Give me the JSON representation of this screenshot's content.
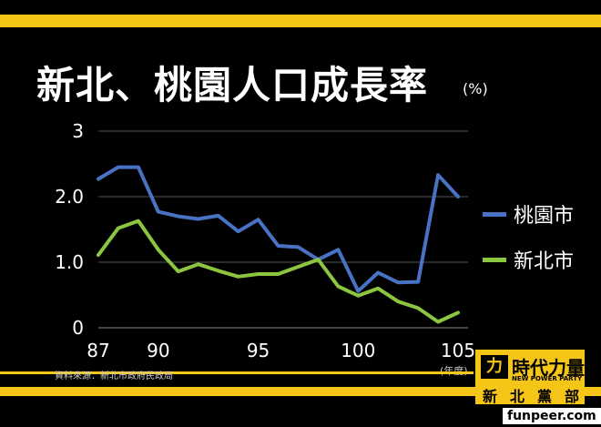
{
  "title": "新北、桃園人口成長率",
  "unit": "(%)",
  "source": "資料來源：新北市政府民政局",
  "year_unit": "(年度)",
  "logo": {
    "mark": "力",
    "name": "時代力量",
    "english": "NEW POWER PARTY",
    "branch": "新北黨部"
  },
  "watermark": "funpeer.com",
  "colors": {
    "accent": "#f5c518",
    "taoyuan": "#4a72c4",
    "newtaipei": "#8cc63f"
  },
  "chart_data": {
    "type": "line",
    "title": "新北、桃園人口成長率",
    "xlabel": "(年度)",
    "ylabel": "(%)",
    "x": [
      87,
      88,
      89,
      90,
      91,
      92,
      93,
      94,
      95,
      96,
      97,
      98,
      99,
      100,
      101,
      102,
      103,
      104,
      105
    ],
    "xlim": [
      87,
      105.5
    ],
    "ylim": [
      0,
      3
    ],
    "x_ticks": [
      "87",
      "90",
      "95",
      "100",
      "105"
    ],
    "y_ticks": [
      "0",
      "1.0",
      "2.0",
      "3"
    ],
    "y_tick_values": [
      0,
      1,
      2,
      3
    ],
    "x_tick_values": [
      87,
      90,
      95,
      100,
      105
    ],
    "grid": true,
    "legend": "right",
    "series": [
      {
        "name": "桃園市",
        "color": "#4a72c4",
        "values": [
          2.27,
          2.45,
          2.45,
          1.77,
          1.7,
          1.66,
          1.71,
          1.47,
          1.65,
          1.25,
          1.23,
          1.04,
          1.19,
          0.56,
          0.84,
          0.69,
          0.7,
          2.33,
          2.0
        ]
      },
      {
        "name": "新北市",
        "color": "#8cc63f",
        "values": [
          1.11,
          1.52,
          1.63,
          1.19,
          0.86,
          0.97,
          0.87,
          0.78,
          0.82,
          0.82,
          0.93,
          1.04,
          0.63,
          0.49,
          0.6,
          0.4,
          0.3,
          0.09,
          0.23
        ]
      }
    ]
  }
}
